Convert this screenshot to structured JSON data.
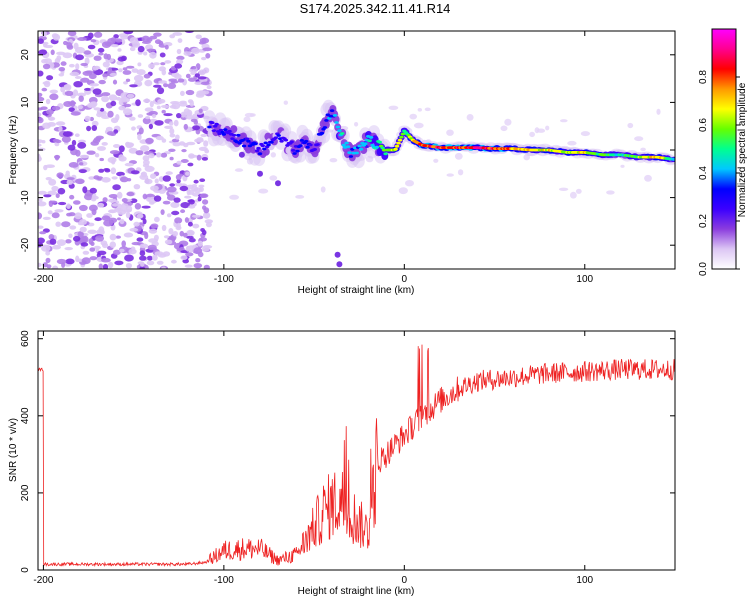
{
  "figure_title": "S174.2025.342.11.41.R14",
  "chart_data": [
    {
      "type": "heatmap",
      "title": "S174.2025.342.11.41.R14",
      "xlabel": "Height of straight line (km)",
      "ylabel": "Frequency (Hz)",
      "xlim": [
        -203,
        150
      ],
      "ylim": [
        -25,
        25
      ],
      "x_ticks": [
        -200,
        -100,
        0,
        100
      ],
      "y_ticks": [
        -20,
        -10,
        0,
        10,
        20
      ],
      "colorbar": {
        "label": "Normalized spectral amplitude",
        "range": [
          0,
          1
        ],
        "ticks": [
          0.0,
          0.2,
          0.4,
          0.6,
          0.8
        ],
        "colormap": [
          "#ffffff",
          "#dcc6f4",
          "#8b3dde",
          "#3b00ff",
          "#0000ff",
          "#00c8ff",
          "#00ff90",
          "#66ff00",
          "#ffff00",
          "#ff9900",
          "#ff0000",
          "#ff0090",
          "#ff00ff"
        ]
      },
      "noise_region_x": [
        -203,
        -108
      ],
      "signal_track": {
        "x": [
          -108,
          -100,
          -90,
          -80,
          -70,
          -60,
          -55,
          -50,
          -45,
          -40,
          -35,
          -30,
          -25,
          -20,
          -15,
          -10,
          -5,
          0,
          5,
          10,
          20,
          30,
          40,
          50,
          60,
          70,
          80,
          90,
          100,
          110,
          120,
          130,
          140,
          150
        ],
        "freq": [
          5,
          4,
          2,
          0,
          3,
          0,
          2,
          0,
          5,
          8,
          3,
          -1,
          0,
          2,
          1,
          0,
          0,
          4,
          2,
          1,
          0.5,
          0.5,
          0.5,
          0.3,
          0.3,
          0,
          0,
          -0.5,
          -0.5,
          -1,
          -1,
          -1.5,
          -1.5,
          -2
        ],
        "amplitude": [
          0.3,
          0.3,
          0.35,
          0.3,
          0.3,
          0.3,
          0.35,
          0.3,
          0.35,
          0.4,
          0.45,
          0.4,
          0.4,
          0.45,
          0.5,
          0.6,
          0.7,
          0.55,
          0.7,
          0.85,
          0.85,
          0.85,
          0.9,
          0.85,
          0.8,
          0.7,
          0.7,
          0.65,
          0.7,
          0.6,
          0.5,
          0.6,
          0.75,
          0.5
        ]
      }
    },
    {
      "type": "line",
      "xlabel": "Height of straight line (km)",
      "ylabel": "SNR (10 * v/v)",
      "xlim": [
        -203,
        150
      ],
      "ylim": [
        0,
        620
      ],
      "x_ticks": [
        -200,
        -100,
        0,
        100
      ],
      "y_ticks": [
        0,
        200,
        400,
        600
      ],
      "color": "#ee2222",
      "series": [
        {
          "name": "SNR",
          "x": [
            -200,
            -180,
            -160,
            -140,
            -120,
            -110,
            -100,
            -90,
            -80,
            -70,
            -60,
            -50,
            -45,
            -40,
            -35,
            -30,
            -25,
            -20,
            -15,
            -10,
            0,
            10,
            20,
            30,
            40,
            60,
            80,
            100,
            120,
            150
          ],
          "y": [
            15,
            15,
            15,
            15,
            15,
            20,
            50,
            55,
            55,
            25,
            40,
            110,
            150,
            170,
            180,
            150,
            120,
            100,
            280,
            300,
            350,
            400,
            440,
            470,
            490,
            500,
            510,
            515,
            520,
            520
          ]
        }
      ]
    }
  ]
}
